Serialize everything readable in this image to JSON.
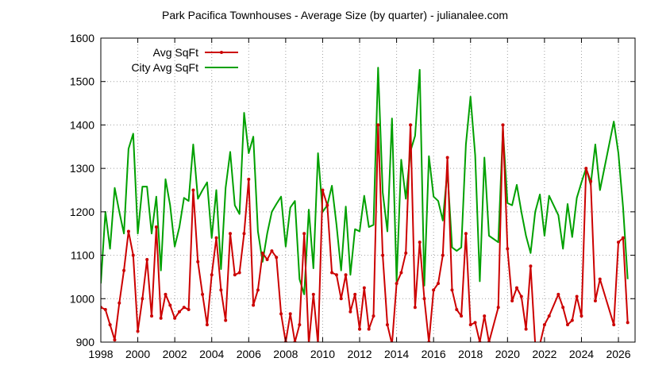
{
  "chart_data": {
    "type": "line",
    "title": "Park Pacifica Townhouses - Average Size (by quarter) - julianalee.com",
    "xlabel": "",
    "ylabel": "",
    "xlim": [
      1998,
      2026.9
    ],
    "ylim": [
      900,
      1600
    ],
    "x_ticks": [
      1998,
      2000,
      2002,
      2004,
      2006,
      2008,
      2010,
      2012,
      2014,
      2016,
      2018,
      2020,
      2022,
      2024,
      2026
    ],
    "y_ticks": [
      900,
      1000,
      1100,
      1200,
      1300,
      1400,
      1500,
      1600
    ],
    "grid": true,
    "legend_position": "top-left",
    "series": [
      {
        "name": "Avg SqFt",
        "color": "#cc0000",
        "markers": true,
        "x": [
          1998.0,
          1998.25,
          1998.5,
          1998.75,
          1999.0,
          1999.25,
          1999.5,
          1999.75,
          2000.0,
          2000.25,
          2000.5,
          2000.75,
          2001.0,
          2001.25,
          2001.5,
          2001.75,
          2002.0,
          2002.25,
          2002.5,
          2002.75,
          2003.0,
          2003.25,
          2003.5,
          2003.75,
          2004.0,
          2004.25,
          2004.5,
          2004.75,
          2005.0,
          2005.25,
          2005.5,
          2005.75,
          2006.0,
          2006.25,
          2006.5,
          2006.75,
          2007.0,
          2007.25,
          2007.5,
          2007.75,
          2008.0,
          2008.25,
          2008.5,
          2008.75,
          2009.0,
          2009.25,
          2009.5,
          2009.75,
          2010.0,
          2010.25,
          2010.5,
          2010.75,
          2011.0,
          2011.25,
          2011.5,
          2011.75,
          2012.0,
          2012.25,
          2012.5,
          2012.75,
          2013.0,
          2013.25,
          2013.5,
          2013.75,
          2014.0,
          2014.25,
          2014.5,
          2014.75,
          2015.0,
          2015.25,
          2015.5,
          2015.75,
          2016.0,
          2016.25,
          2016.5,
          2016.75,
          2017.0,
          2017.25,
          2017.5,
          2017.75,
          2018.0,
          2018.25,
          2018.5,
          2018.75,
          2019.0,
          2019.5,
          2019.75,
          2020.0,
          2020.25,
          2020.5,
          2020.75,
          2021.0,
          2021.25,
          2021.5,
          2021.75,
          2022.0,
          2022.25,
          2022.75,
          2023.0,
          2023.25,
          2023.5,
          2023.75,
          2024.0,
          2024.25,
          2024.5,
          2024.75,
          2025.0,
          2025.75,
          2026.0,
          2026.25,
          2026.5
        ],
        "values": [
          980,
          975,
          940,
          905,
          990,
          1065,
          1155,
          1100,
          925,
          1000,
          1090,
          960,
          1165,
          955,
          1010,
          985,
          955,
          970,
          980,
          975,
          1250,
          1085,
          1010,
          940,
          1055,
          1140,
          1020,
          950,
          1150,
          1055,
          1060,
          1150,
          1275,
          985,
          1020,
          1105,
          1090,
          1110,
          1095,
          965,
          900,
          965,
          900,
          940,
          1150,
          895,
          1010,
          895,
          1250,
          1215,
          1060,
          1055,
          1000,
          1055,
          970,
          1010,
          930,
          1025,
          930,
          960,
          1400,
          1100,
          940,
          895,
          1035,
          1060,
          1105,
          1400,
          980,
          1130,
          1000,
          900,
          1020,
          1035,
          1100,
          1325,
          1020,
          975,
          960,
          1150,
          940,
          945,
          900,
          960,
          900,
          980,
          1400,
          1115,
          995,
          1025,
          1005,
          930,
          1075,
          895,
          895,
          940,
          960,
          1010,
          980,
          940,
          950,
          1005,
          960,
          1300,
          1270,
          995,
          1045,
          940,
          1130,
          1140,
          945
        ]
      },
      {
        "name": "City Avg SqFt",
        "color": "#00a000",
        "markers": false,
        "x": [
          1998.0,
          1998.25,
          1998.5,
          1998.75,
          1999.0,
          1999.25,
          1999.5,
          1999.75,
          2000.0,
          2000.25,
          2000.5,
          2000.75,
          2001.0,
          2001.25,
          2001.5,
          2001.75,
          2002.0,
          2002.25,
          2002.5,
          2002.75,
          2003.0,
          2003.25,
          2003.5,
          2003.75,
          2004.0,
          2004.25,
          2004.5,
          2004.75,
          2005.0,
          2005.25,
          2005.5,
          2005.75,
          2006.0,
          2006.25,
          2006.5,
          2006.75,
          2007.0,
          2007.25,
          2007.5,
          2007.75,
          2008.0,
          2008.25,
          2008.5,
          2008.75,
          2009.0,
          2009.25,
          2009.5,
          2009.75,
          2010.0,
          2010.25,
          2010.5,
          2010.75,
          2011.0,
          2011.25,
          2011.5,
          2011.75,
          2012.0,
          2012.25,
          2012.5,
          2012.75,
          2013.0,
          2013.25,
          2013.5,
          2013.75,
          2014.0,
          2014.25,
          2014.5,
          2014.75,
          2015.0,
          2015.25,
          2015.5,
          2015.75,
          2016.0,
          2016.25,
          2016.5,
          2016.75,
          2017.0,
          2017.25,
          2017.5,
          2017.75,
          2018.0,
          2018.25,
          2018.5,
          2018.75,
          2019.0,
          2019.5,
          2019.75,
          2020.0,
          2020.25,
          2020.5,
          2020.75,
          2021.0,
          2021.25,
          2021.5,
          2021.75,
          2022.0,
          2022.25,
          2022.75,
          2023.0,
          2023.25,
          2023.5,
          2023.75,
          2024.0,
          2024.25,
          2024.5,
          2024.75,
          2025.0,
          2025.75,
          2026.0,
          2026.25,
          2026.5
        ],
        "values": [
          1035,
          1200,
          1115,
          1255,
          1200,
          1150,
          1345,
          1380,
          1150,
          1258,
          1258,
          1150,
          1235,
          1065,
          1275,
          1215,
          1120,
          1165,
          1232,
          1225,
          1355,
          1230,
          1250,
          1268,
          1140,
          1250,
          1068,
          1255,
          1338,
          1215,
          1195,
          1428,
          1335,
          1373,
          1155,
          1085,
          1150,
          1200,
          1218,
          1235,
          1120,
          1210,
          1225,
          1045,
          1010,
          1205,
          1070,
          1335,
          1200,
          1215,
          1260,
          1170,
          1065,
          1212,
          1055,
          1160,
          1155,
          1237,
          1165,
          1170,
          1532,
          1245,
          1155,
          1415,
          1040,
          1320,
          1230,
          1340,
          1375,
          1527,
          1030,
          1328,
          1235,
          1225,
          1180,
          1295,
          1118,
          1110,
          1118,
          1355,
          1465,
          1330,
          1040,
          1325,
          1145,
          1130,
          1390,
          1220,
          1215,
          1262,
          1200,
          1145,
          1105,
          1200,
          1240,
          1145,
          1237,
          1192,
          1115,
          1218,
          1142,
          1232,
          1268,
          1300,
          1262,
          1355,
          1250,
          1408,
          1335,
          1210,
          1045
        ]
      }
    ]
  }
}
